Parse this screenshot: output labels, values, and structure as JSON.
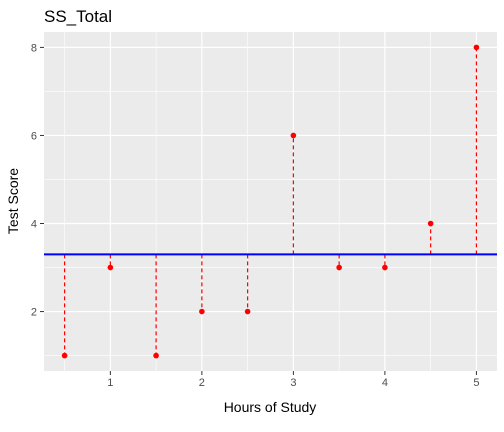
{
  "chart_data": {
    "type": "scatter",
    "title": "SS_Total",
    "xlabel": "Hours of Study",
    "ylabel": "Test Score",
    "xlim": [
      0.275,
      5.225
    ],
    "ylim": [
      0.65,
      8.35
    ],
    "xticks": [
      1,
      2,
      3,
      4,
      5
    ],
    "xtick_labels": [
      "1",
      "2",
      "3",
      "4",
      "5"
    ],
    "yticks": [
      2,
      4,
      6,
      8
    ],
    "ytick_labels": [
      "2",
      "4",
      "6",
      "8"
    ],
    "grid": true,
    "points": [
      {
        "x": 0.5,
        "y": 1
      },
      {
        "x": 1.0,
        "y": 3
      },
      {
        "x": 1.5,
        "y": 1
      },
      {
        "x": 2.0,
        "y": 2
      },
      {
        "x": 2.5,
        "y": 2
      },
      {
        "x": 3.0,
        "y": 6
      },
      {
        "x": 3.5,
        "y": 3
      },
      {
        "x": 4.0,
        "y": 3
      },
      {
        "x": 4.5,
        "y": 4
      },
      {
        "x": 5.0,
        "y": 8
      }
    ],
    "mean_line": 3.3,
    "colors": {
      "points": "#ff0000",
      "segments": "#ff0000",
      "mean_line": "#0000ff",
      "panel": "#ebebeb",
      "grid": "#ffffff"
    }
  }
}
